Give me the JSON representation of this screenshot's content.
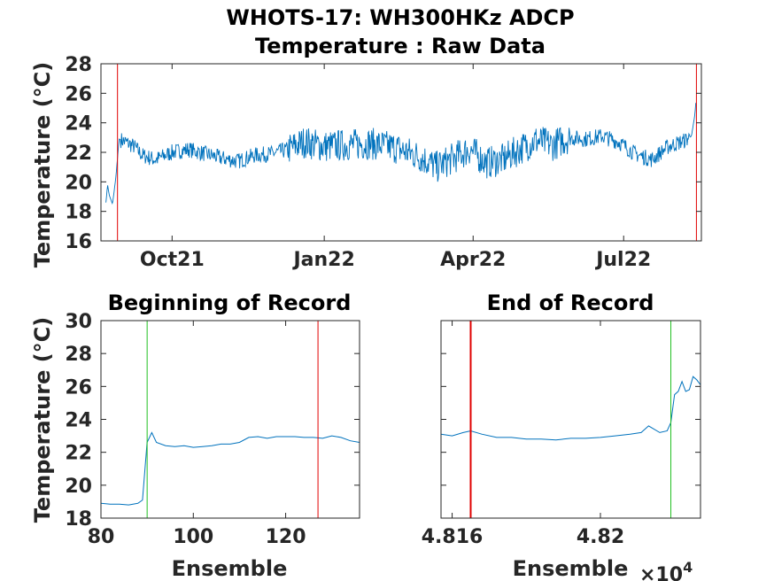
{
  "figure": {
    "title_line1": "WHOTS-17: WH300HKz ADCP",
    "title_line2": "Temperature : Raw Data"
  },
  "colors": {
    "series": "#0072BD",
    "red_marker": "#E00000",
    "green_marker": "#20C020",
    "axis": "#262626"
  },
  "chart_data": [
    {
      "type": "line",
      "title": "",
      "ylabel": "Temperature (°C)",
      "xlabel": "",
      "ylim": [
        16,
        28
      ],
      "yticks": [
        "16",
        "18",
        "20",
        "22",
        "24",
        "26",
        "28"
      ],
      "xticks": [
        "Oct21",
        "Jan22",
        "Apr22",
        "Jul22"
      ],
      "x_range_days_from_2021_09_01": [
        -13,
        350
      ],
      "x_tick_days_from_2021_09_01": [
        30,
        122,
        212,
        303
      ],
      "markers": {
        "red_x_days": [
          -3,
          347
        ]
      },
      "series": [
        {
          "x": [
            -10,
            -9,
            -8,
            -6,
            -4,
            -2,
            2,
            7,
            12,
            20,
            30,
            40,
            50,
            60,
            70,
            80,
            90,
            100,
            110,
            122,
            135,
            150,
            165,
            180,
            190,
            200,
            210,
            220,
            230,
            240,
            250,
            260,
            270,
            280,
            290,
            300,
            310,
            320,
            330,
            340,
            344,
            346,
            347
          ],
          "y": [
            18.6,
            19.8,
            19.1,
            18.5,
            20.3,
            22.9,
            22.7,
            22.4,
            21.8,
            21.5,
            22.0,
            22.2,
            21.9,
            21.6,
            21.4,
            21.8,
            21.9,
            22.2,
            22.7,
            22.4,
            22.5,
            22.6,
            22.3,
            21.7,
            21.0,
            21.6,
            22.2,
            21.3,
            21.5,
            22.2,
            22.8,
            22.5,
            23.0,
            22.9,
            23.1,
            22.7,
            21.9,
            21.5,
            22.4,
            22.8,
            23.1,
            24.5,
            25.8
          ]
        }
      ]
    },
    {
      "type": "line",
      "title": "Beginning of Record",
      "xlabel": "Ensemble",
      "ylabel": "Temperature (°C)",
      "xlim": [
        80,
        136
      ],
      "ylim": [
        18,
        30
      ],
      "xticks": [
        "80",
        "100",
        "120"
      ],
      "yticks": [
        "18",
        "20",
        "22",
        "24",
        "26",
        "28",
        "30"
      ],
      "markers": {
        "green_x": [
          90
        ],
        "red_x": [
          127
        ]
      },
      "series": [
        {
          "x": [
            80,
            82,
            84,
            86,
            88,
            89,
            90,
            91,
            92,
            94,
            96,
            98,
            100,
            102,
            104,
            106,
            108,
            110,
            112,
            114,
            116,
            118,
            120,
            122,
            124,
            126,
            128,
            130,
            132,
            134,
            136
          ],
          "y": [
            18.9,
            18.85,
            18.85,
            18.8,
            18.9,
            19.1,
            22.6,
            23.2,
            22.6,
            22.4,
            22.35,
            22.4,
            22.3,
            22.35,
            22.4,
            22.5,
            22.5,
            22.6,
            22.9,
            22.95,
            22.85,
            22.95,
            22.95,
            22.95,
            22.9,
            22.9,
            22.85,
            23.0,
            22.9,
            22.7,
            22.6
          ]
        }
      ]
    },
    {
      "type": "line",
      "title": "End of Record",
      "xlabel": "Ensemble",
      "x_exponent_label": "×10",
      "x_exponent_power": "4",
      "ylim": [
        18,
        30
      ],
      "xlim": [
        48157,
        48227
      ],
      "xticks": [
        "4.816",
        "4.82"
      ],
      "tick_positions": [
        48160,
        48200
      ],
      "markers": {
        "red_x": [
          48165
        ],
        "green_x": [
          48219
        ]
      },
      "series": [
        {
          "x": [
            48157,
            48160,
            48163,
            48165,
            48168,
            48172,
            48176,
            48180,
            48184,
            48188,
            48192,
            48196,
            48200,
            48204,
            48208,
            48211,
            48213,
            48216,
            48218,
            48219,
            48220,
            48221,
            48222,
            48223,
            48224,
            48225,
            48226,
            48227
          ],
          "y": [
            23.1,
            23.0,
            23.2,
            23.3,
            23.1,
            22.9,
            22.9,
            22.8,
            22.8,
            22.75,
            22.85,
            22.85,
            22.9,
            23.0,
            23.1,
            23.2,
            23.6,
            23.2,
            23.3,
            23.8,
            25.5,
            25.7,
            26.3,
            25.7,
            25.8,
            26.6,
            26.4,
            26.1
          ]
        }
      ]
    }
  ]
}
